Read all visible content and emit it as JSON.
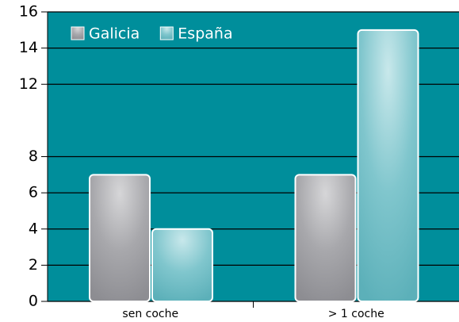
{
  "chart_data": {
    "type": "bar",
    "categories": [
      "sen coche",
      "> 1 coche"
    ],
    "series": [
      {
        "name": "Galicia",
        "color": "#9a9a9e",
        "values": [
          7,
          7
        ]
      },
      {
        "name": "España",
        "color": "#7cc3cb",
        "values": [
          4,
          15
        ]
      }
    ],
    "ylim": [
      0,
      16
    ],
    "yticks": [
      0,
      2,
      4,
      6,
      8,
      12,
      14,
      16
    ],
    "grid": true,
    "background": "#008e9b",
    "legend": "top-left"
  }
}
